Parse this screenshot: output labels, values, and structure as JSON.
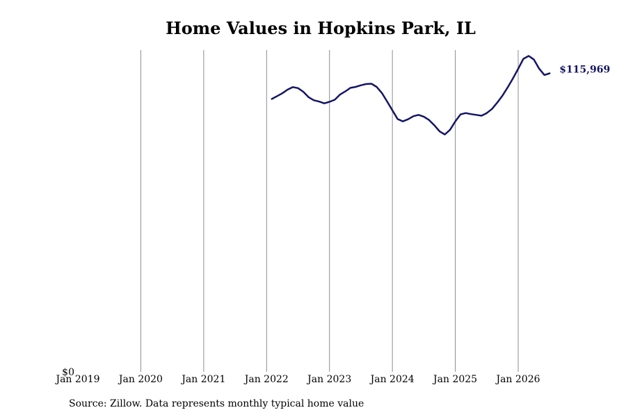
{
  "chart_data": {
    "type": "line",
    "title": "Home Values in Hopkins Park, IL",
    "xlabel": "",
    "ylabel": "",
    "x_tick_labels": [
      "Jan 2019",
      "Jan 2020",
      "Jan 2021",
      "Jan 2022",
      "Jan 2023",
      "Jan 2024",
      "Jan 2025",
      "Jan 2026"
    ],
    "y_tick_labels": [
      "$0"
    ],
    "ylim": [
      0,
      125000
    ],
    "grid": "vertical",
    "line_color": "#141466",
    "series": [
      {
        "x": [
          "2022-02",
          "2022-03",
          "2022-04",
          "2022-05",
          "2022-06",
          "2022-07",
          "2022-08",
          "2022-09",
          "2022-10",
          "2022-11",
          "2022-12",
          "2023-01",
          "2023-02",
          "2023-03",
          "2023-04",
          "2023-05",
          "2023-06",
          "2023-07",
          "2023-08",
          "2023-09",
          "2023-10",
          "2023-11",
          "2023-12",
          "2024-01",
          "2024-02",
          "2024-03",
          "2024-04",
          "2024-05",
          "2024-06",
          "2024-07",
          "2024-08",
          "2024-09",
          "2024-10",
          "2024-11",
          "2024-12",
          "2025-01",
          "2025-02",
          "2025-03",
          "2025-04",
          "2025-05",
          "2025-06",
          "2025-07",
          "2025-08",
          "2025-09",
          "2025-10",
          "2025-11",
          "2025-12",
          "2026-01",
          "2026-02",
          "2026-03",
          "2026-04",
          "2026-05",
          "2026-06",
          "2026-07"
        ],
        "values": [
          106000,
          107100,
          108200,
          109600,
          110600,
          110200,
          108800,
          106700,
          105500,
          105000,
          104300,
          104900,
          105700,
          107700,
          108900,
          110300,
          110700,
          111300,
          111800,
          111900,
          110700,
          108300,
          105000,
          101600,
          98200,
          97300,
          98100,
          99300,
          99800,
          99100,
          97800,
          95800,
          93400,
          92200,
          94000,
          97300,
          100000,
          100500,
          100100,
          99800,
          99500,
          100500,
          102100,
          104600,
          107300,
          110500,
          114000,
          117700,
          121600,
          122700,
          121300,
          117800,
          115300,
          115969
        ]
      }
    ],
    "end_label": "$115,969"
  },
  "source_note": "Source: Zillow. Data represents monthly typical home value"
}
